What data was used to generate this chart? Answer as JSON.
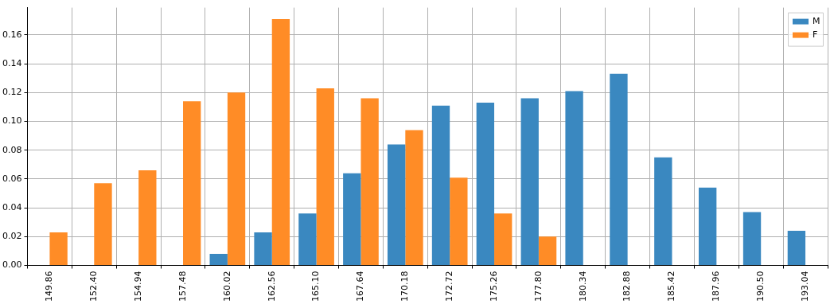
{
  "chart_data": {
    "type": "bar",
    "categories": [
      "149.86",
      "152.40",
      "154.94",
      "157.48",
      "160.02",
      "162.56",
      "165.10",
      "167.64",
      "170.18",
      "172.72",
      "175.26",
      "177.80",
      "180.34",
      "182.88",
      "185.42",
      "187.96",
      "190.50",
      "193.04"
    ],
    "series": [
      {
        "name": "M",
        "color": "#3a88c0",
        "values": [
          null,
          null,
          null,
          null,
          0.008,
          0.023,
          0.036,
          0.064,
          0.084,
          0.111,
          0.113,
          0.116,
          0.121,
          0.133,
          0.075,
          0.054,
          0.037,
          0.024
        ]
      },
      {
        "name": "F",
        "color": "#ff8c26",
        "values": [
          0.023,
          0.057,
          0.066,
          0.114,
          0.12,
          0.171,
          0.123,
          0.116,
          0.094,
          0.061,
          0.036,
          0.02,
          null,
          null,
          null,
          null,
          null,
          null
        ]
      }
    ],
    "ylim": [
      0,
      0.179
    ],
    "yticks": [
      {
        "value": 0,
        "label": "0.00"
      },
      {
        "value": 0.02,
        "label": "0.02"
      },
      {
        "value": 0.04,
        "label": "0.04"
      },
      {
        "value": 0.06,
        "label": "0.06"
      },
      {
        "value": 0.08,
        "label": "0.08"
      },
      {
        "value": 0.1,
        "label": "0.10"
      },
      {
        "value": 0.12,
        "label": "0.12"
      },
      {
        "value": 0.14,
        "label": "0.14"
      },
      {
        "value": 0.16,
        "label": "0.16"
      }
    ],
    "grid": true,
    "legend": "top right"
  }
}
